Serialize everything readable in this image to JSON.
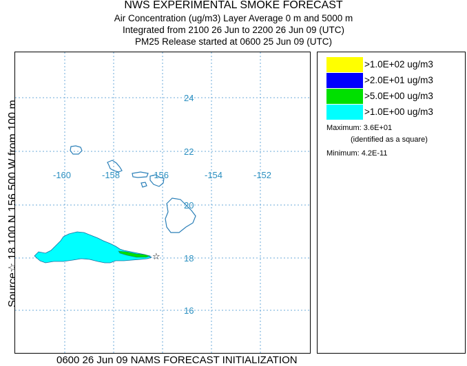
{
  "header": {
    "title": "NWS EXPERIMENTAL SMOKE FORECAST",
    "line1": "Air Concentration (ug/m3) Layer Average    0 m and  5000 m",
    "line2": "Integrated from 2100 26 Jun to 2200 26 Jun 09 (UTC)",
    "line3": "PM25 Release started at 0600 25 Jun 09 (UTC)"
  },
  "side_label": "Source☆ 18.100 N 156.500 W    from  100 m",
  "bottom_label": "0600 26 Jun 09 NAMS FORECAST INITIALIZATION",
  "map": {
    "lat_labels": [
      "24",
      "22",
      "20",
      "18",
      "16"
    ],
    "lon_labels": [
      "-160",
      "-158",
      "-156",
      "-154",
      "-152"
    ],
    "grid_color": "#6aa8d8",
    "coast_color": "#2a7fb8",
    "label_color": "#2a8fc0",
    "source_symbol": "☆"
  },
  "legend": {
    "items": [
      {
        "label": ">1.0E+02 ug/m3",
        "color": "#ffff00"
      },
      {
        "label": ">2.0E+01 ug/m3",
        "color": "#0000ff"
      },
      {
        "label": ">5.0E+00 ug/m3",
        "color": "#00e000"
      },
      {
        "label": ">1.0E+00 ug/m3",
        "color": "#00ffff"
      }
    ],
    "maximum": "Maximum: 3.6E+01",
    "maximum_note": "(identified as a square)",
    "minimum": "Minimum: 4.2E-11"
  }
}
